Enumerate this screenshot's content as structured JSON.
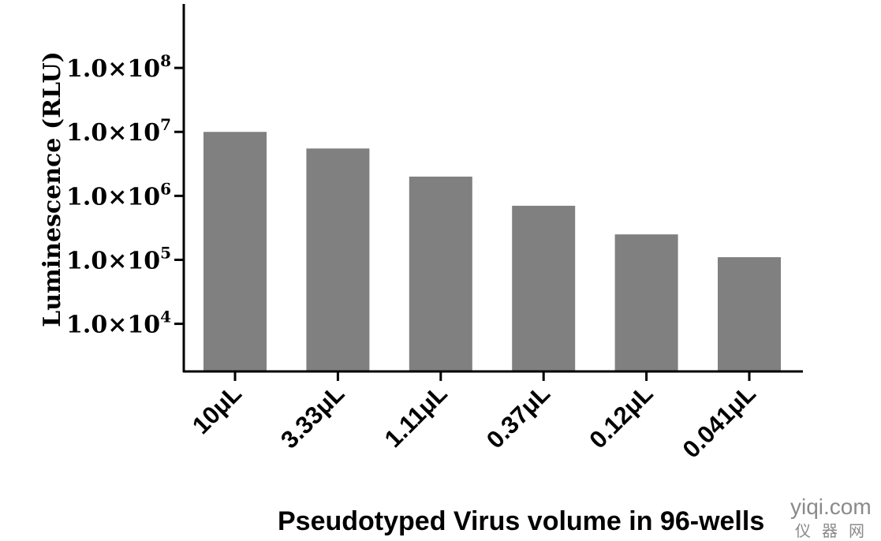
{
  "chart_data": {
    "type": "bar",
    "title": "",
    "categories": [
      "10μL",
      "3.33μL",
      "1.11μL",
      "0.37μL",
      "0.12μL",
      "0.041μL"
    ],
    "values": [
      10000000,
      5500000,
      2000000,
      700000,
      250000,
      110000
    ],
    "xlabel": "Pseudotyped Virus volume in 96-wells",
    "ylabel": "Luminescence (RLU)",
    "yscale": "log",
    "ylim": [
      1800,
      1000000000
    ],
    "y_ticks": [
      {
        "base": "1.0×10",
        "exp": "4",
        "value": 10000
      },
      {
        "base": "1.0×10",
        "exp": "5",
        "value": 100000
      },
      {
        "base": "1.0×10",
        "exp": "6",
        "value": 1000000
      },
      {
        "base": "1.0×10",
        "exp": "7",
        "value": 10000000
      },
      {
        "base": "1.0×10",
        "exp": "8",
        "value": 100000000
      }
    ],
    "bar_color": "#808080",
    "grid": false,
    "legend": "none"
  },
  "watermark": {
    "line1": "yiqi.com",
    "line2": "仪器网"
  }
}
